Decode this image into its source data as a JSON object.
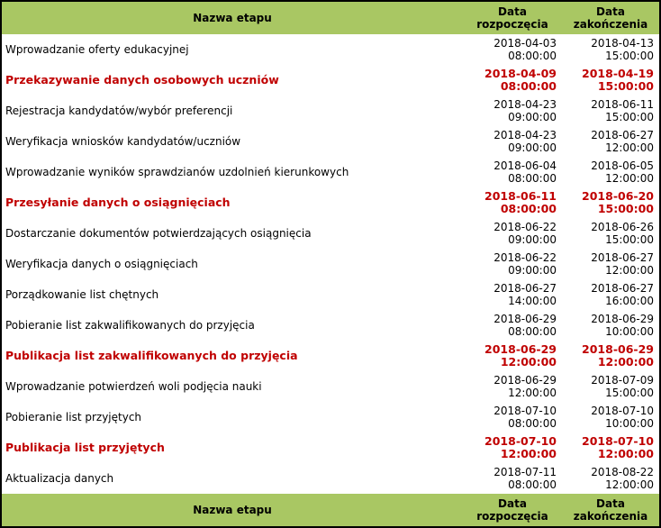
{
  "columns": {
    "name": "Nazwa etapu",
    "start_l1": "Data",
    "start_l2": "rozpoczęcia",
    "end_l1": "Data",
    "end_l2": "zakończenia"
  },
  "colors": {
    "header_bg": "#a9c763",
    "highlight_text": "#c00000"
  },
  "rows": [
    {
      "name": "Wprowadzanie oferty edukacyjnej",
      "start_date": "2018-04-03",
      "start_time": "08:00:00",
      "end_date": "2018-04-13",
      "end_time": "15:00:00",
      "highlight": false
    },
    {
      "name": "Przekazywanie danych osobowych uczniów",
      "start_date": "2018-04-09",
      "start_time": "08:00:00",
      "end_date": "2018-04-19",
      "end_time": "15:00:00",
      "highlight": true
    },
    {
      "name": "Rejestracja kandydatów/wybór preferencji",
      "start_date": "2018-04-23",
      "start_time": "09:00:00",
      "end_date": "2018-06-11",
      "end_time": "15:00:00",
      "highlight": false
    },
    {
      "name": "Weryfikacja wniosków kandydatów/uczniów",
      "start_date": "2018-04-23",
      "start_time": "09:00:00",
      "end_date": "2018-06-27",
      "end_time": "12:00:00",
      "highlight": false
    },
    {
      "name": "Wprowadzanie wyników sprawdzianów uzdolnień kierunkowych",
      "start_date": "2018-06-04",
      "start_time": "08:00:00",
      "end_date": "2018-06-05",
      "end_time": "12:00:00",
      "highlight": false
    },
    {
      "name": "Przesyłanie danych o osiągnięciach",
      "start_date": "2018-06-11",
      "start_time": "08:00:00",
      "end_date": "2018-06-20",
      "end_time": "15:00:00",
      "highlight": true
    },
    {
      "name": "Dostarczanie dokumentów potwierdzających osiągnięcia",
      "start_date": "2018-06-22",
      "start_time": "09:00:00",
      "end_date": "2018-06-26",
      "end_time": "15:00:00",
      "highlight": false
    },
    {
      "name": "Weryfikacja danych o osiągnięciach",
      "start_date": "2018-06-22",
      "start_time": "09:00:00",
      "end_date": "2018-06-27",
      "end_time": "12:00:00",
      "highlight": false
    },
    {
      "name": "Porządkowanie list chętnych",
      "start_date": "2018-06-27",
      "start_time": "14:00:00",
      "end_date": "2018-06-27",
      "end_time": "16:00:00",
      "highlight": false
    },
    {
      "name": "Pobieranie list zakwalifikowanych do przyjęcia",
      "start_date": "2018-06-29",
      "start_time": "08:00:00",
      "end_date": "2018-06-29",
      "end_time": "10:00:00",
      "highlight": false
    },
    {
      "name": "Publikacja list zakwalifikowanych do przyjęcia",
      "start_date": "2018-06-29",
      "start_time": "12:00:00",
      "end_date": "2018-06-29",
      "end_time": "12:00:00",
      "highlight": true
    },
    {
      "name": "Wprowadzanie potwierdzeń woli podjęcia nauki",
      "start_date": "2018-06-29",
      "start_time": "12:00:00",
      "end_date": "2018-07-09",
      "end_time": "15:00:00",
      "highlight": false
    },
    {
      "name": "Pobieranie list przyjętych",
      "start_date": "2018-07-10",
      "start_time": "08:00:00",
      "end_date": "2018-07-10",
      "end_time": "10:00:00",
      "highlight": false
    },
    {
      "name": "Publikacja list przyjętych",
      "start_date": "2018-07-10",
      "start_time": "12:00:00",
      "end_date": "2018-07-10",
      "end_time": "12:00:00",
      "highlight": true
    },
    {
      "name": "Aktualizacja danych",
      "start_date": "2018-07-11",
      "start_time": "08:00:00",
      "end_date": "2018-08-22",
      "end_time": "12:00:00",
      "highlight": false
    }
  ]
}
